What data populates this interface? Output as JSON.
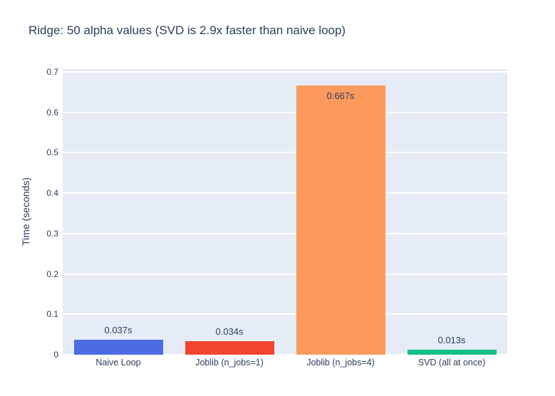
{
  "title": "Ridge: 50 alpha values (SVD is 2.9x faster than naive loop)",
  "colors": {
    "text": "#2a3f5f",
    "plot_background": "#e5ecf6",
    "paper_background": "#ffffff",
    "gridline": "#ffffff"
  },
  "chart_data": {
    "type": "bar",
    "title": "Ridge: 50 alpha values (SVD is 2.9x faster than naive loop)",
    "categories": [
      "Naive Loop",
      "Joblib (n_jobs=1)",
      "Joblib (n_jobs=4)",
      "SVD (all at once)"
    ],
    "values": [
      0.037,
      0.034,
      0.667,
      0.013
    ],
    "bar_labels": [
      "0.037s",
      "0.034s",
      "0.667s",
      "0.013s"
    ],
    "bar_colors": [
      "#4c6be5",
      "#f0452f",
      "#fc9a5c",
      "#12bf85"
    ],
    "xlabel": "",
    "ylabel": "Time (seconds)",
    "ylim": [
      0,
      0.7
    ],
    "yticks": [
      0,
      0.1,
      0.2,
      0.3,
      0.4,
      0.5,
      0.6,
      0.7
    ],
    "ytick_labels": [
      "0",
      "0.1",
      "0.2",
      "0.3",
      "0.4",
      "0.5",
      "0.6",
      "0.7"
    ],
    "grid": true,
    "legend": false,
    "orientation": "vertical"
  }
}
